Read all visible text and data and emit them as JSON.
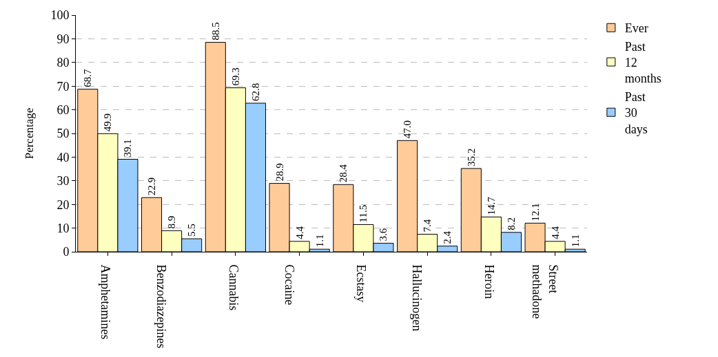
{
  "chart_data": {
    "type": "bar",
    "ylabel": "Percentage",
    "categories": [
      "Amphetamines",
      "Benzodiazepines",
      "Cannabis",
      "Cocaine",
      "Ecstasy",
      "Hallucinogen",
      "Heroin",
      "Street methadone"
    ],
    "series": [
      {
        "name": "Ever",
        "color": "#ffcc99",
        "values": [
          68.7,
          22.9,
          88.5,
          28.9,
          28.4,
          47.0,
          35.2,
          12.1
        ],
        "value_labels": [
          "68.7",
          "22.9",
          "88.5",
          "28.9",
          "28.4",
          "47.0",
          "35.2",
          "12.1"
        ]
      },
      {
        "name": "Past 12 months",
        "color": "#ffffc0",
        "values": [
          49.9,
          8.9,
          69.3,
          4.4,
          11.5,
          7.4,
          14.7,
          4.4
        ],
        "value_labels": [
          "49.9",
          "8.9",
          "69.3",
          "4.4",
          "11.5",
          "7.4",
          "14.7",
          "4.4"
        ]
      },
      {
        "name": "Past 30 days",
        "color": "#99ccff",
        "values": [
          39.1,
          5.5,
          62.8,
          1.1,
          3.6,
          2.4,
          8.2,
          1.1
        ],
        "value_labels": [
          "39.1",
          "5.5",
          "62.8",
          "1.1",
          "3.6",
          "2.4",
          "8.2",
          "1.1"
        ]
      }
    ],
    "ylim": [
      0,
      100
    ],
    "yticks": [
      0,
      10,
      20,
      30,
      40,
      50,
      60,
      70,
      80,
      90,
      100
    ],
    "grid": "y",
    "legend": "top right"
  }
}
